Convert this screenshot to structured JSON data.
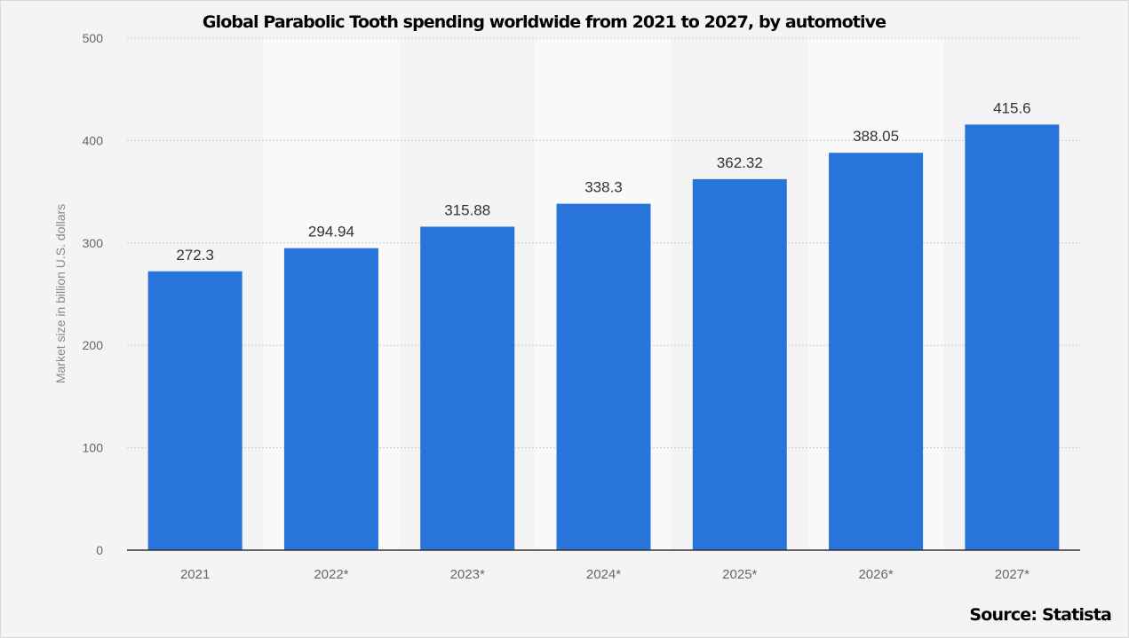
{
  "chart_data": {
    "type": "bar",
    "title": "Global Parabolic Tooth spending worldwide from 2021 to 2027, by automotive",
    "xlabel": "",
    "ylabel": "Market size in billion U.S. dollars",
    "categories": [
      "2021",
      "2022*",
      "2023*",
      "2024*",
      "2025*",
      "2026*",
      "2027*"
    ],
    "values": [
      272.3,
      294.94,
      315.88,
      338.3,
      362.32,
      388.05,
      415.6
    ],
    "value_labels": [
      "272.3",
      "294.94",
      "315.88",
      "338.3",
      "362.32",
      "388.05",
      "415.6"
    ],
    "ylim": [
      0,
      500
    ],
    "yticks": [
      0,
      100,
      200,
      300,
      400,
      500
    ],
    "grid": true,
    "legend": "none",
    "colors": {
      "bar": "#2874db",
      "background": "#f4f4f4",
      "alt_band": "#f9f9f9",
      "grid": "#cccccc",
      "axis": "#333333",
      "tick_text": "#666666"
    }
  },
  "source": "Source: Statista"
}
